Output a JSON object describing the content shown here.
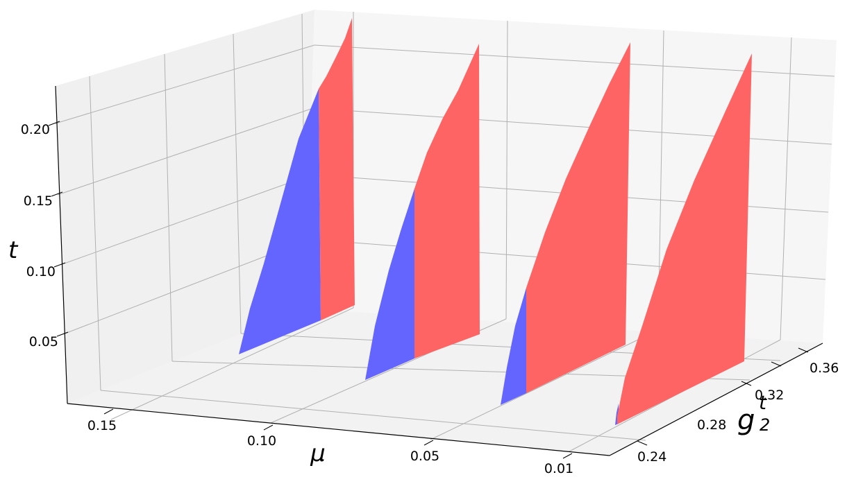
{
  "chart_data": {
    "type": "3d-surface",
    "title": "",
    "axes": {
      "x": {
        "label": "μ",
        "ticks": [
          "0.15",
          "0.10",
          "0.05",
          "0.01"
        ]
      },
      "y": {
        "label": "g",
        "label_superscript": "t",
        "label_subscript": "2",
        "ticks": [
          "0.24",
          "0.28",
          "0.32",
          "0.36"
        ]
      },
      "z": {
        "label": "t",
        "ticks": [
          "0.05",
          "0.10",
          "0.15",
          "0.20"
        ]
      }
    },
    "grid": true,
    "legend": "none",
    "colors": {
      "blue_region": "#6464ff",
      "red_region": "#ff6464"
    },
    "slices": [
      {
        "mu": 0.15,
        "t_boundary": 0.17
      },
      {
        "mu": 0.1,
        "t_boundary": 0.12
      },
      {
        "mu": 0.05,
        "t_boundary": 0.07
      },
      {
        "mu": 0.01,
        "t_boundary": 0.01
      }
    ]
  }
}
